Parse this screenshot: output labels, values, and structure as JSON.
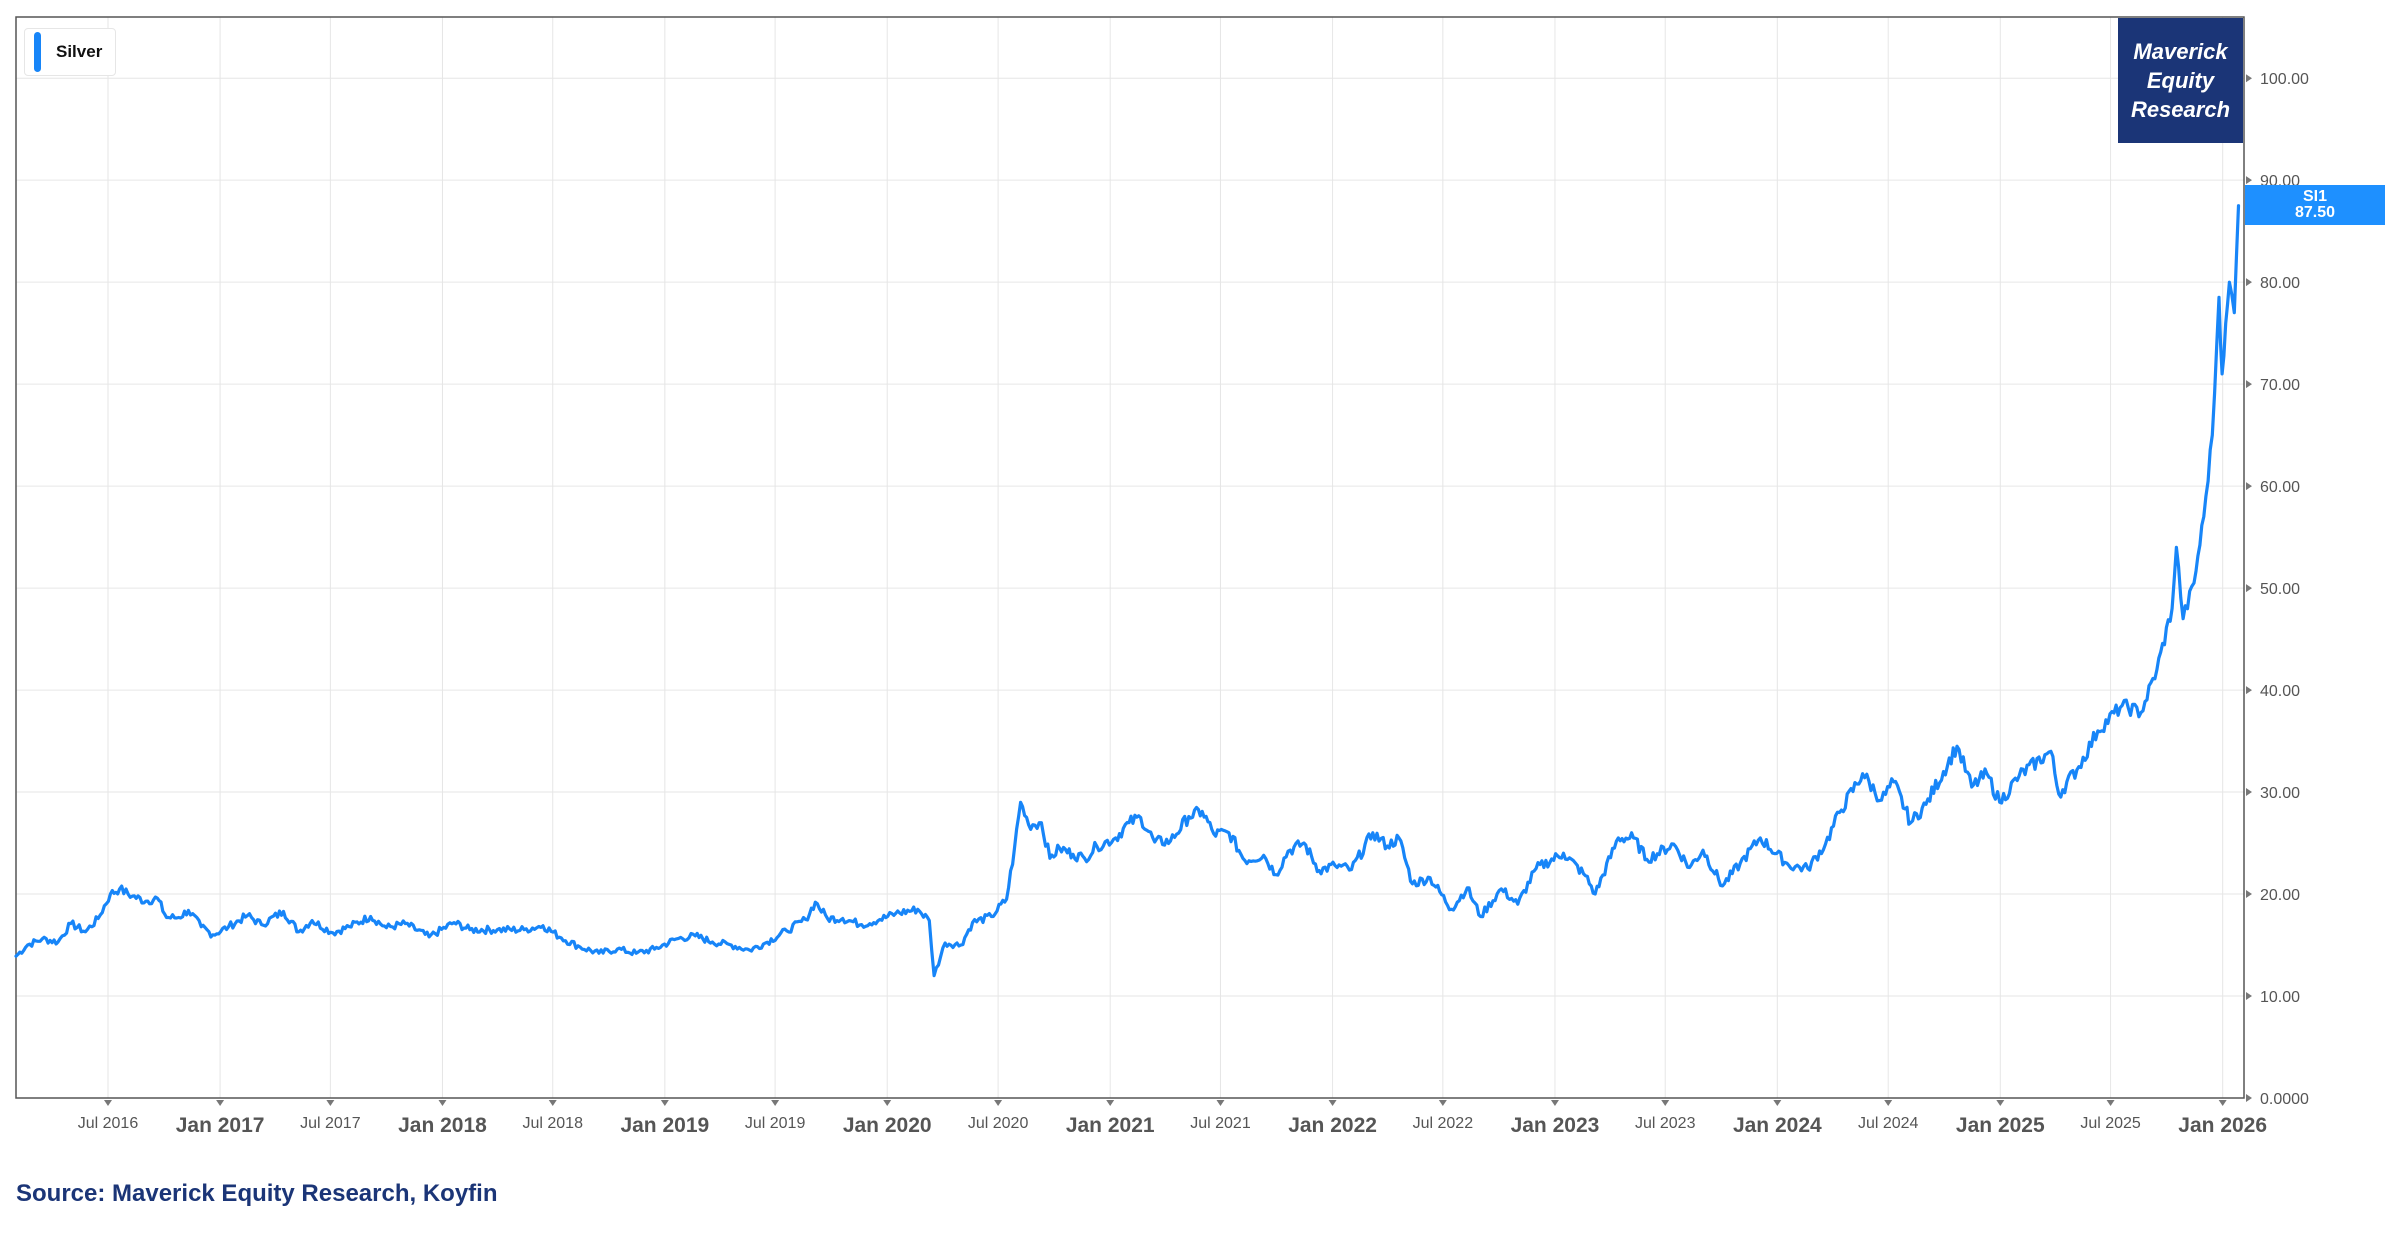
{
  "legend": {
    "label": "Silver"
  },
  "brand": {
    "line1": "Maverick",
    "line2": "Equity",
    "line3": "Research"
  },
  "price_tag": {
    "ticker": "SI1",
    "value": "87.50"
  },
  "source": "Source: Maverick Equity Research, Koyfin",
  "colors": {
    "series": "#1785f8",
    "brand_bg": "#1b3577",
    "tag_bg": "#1e90ff",
    "grid": "#e6e6e6"
  },
  "chart_data": {
    "type": "line",
    "title": "",
    "xlabel": "",
    "ylabel": "",
    "ylim": [
      0,
      106
    ],
    "xlim": [
      "2016-02-01",
      "2026-02-05"
    ],
    "grid": true,
    "legend_position": "top-left",
    "y_ticks": [
      "0.0000",
      "10.00",
      "20.00",
      "30.00",
      "40.00",
      "50.00",
      "60.00",
      "70.00",
      "80.00",
      "90.00",
      "100.00"
    ],
    "x_ticks": [
      {
        "label": "Jul 2016",
        "date": "2016-07-01",
        "major": false
      },
      {
        "label": "Jan 2017",
        "date": "2017-01-01",
        "major": true
      },
      {
        "label": "Jul 2017",
        "date": "2017-07-01",
        "major": false
      },
      {
        "label": "Jan 2018",
        "date": "2018-01-01",
        "major": true
      },
      {
        "label": "Jul 2018",
        "date": "2018-07-01",
        "major": false
      },
      {
        "label": "Jan 2019",
        "date": "2019-01-01",
        "major": true
      },
      {
        "label": "Jul 2019",
        "date": "2019-07-01",
        "major": false
      },
      {
        "label": "Jan 2020",
        "date": "2020-01-01",
        "major": true
      },
      {
        "label": "Jul 2020",
        "date": "2020-07-01",
        "major": false
      },
      {
        "label": "Jan 2021",
        "date": "2021-01-01",
        "major": true
      },
      {
        "label": "Jul 2021",
        "date": "2021-07-01",
        "major": false
      },
      {
        "label": "Jan 2022",
        "date": "2022-01-01",
        "major": true
      },
      {
        "label": "Jul 2022",
        "date": "2022-07-01",
        "major": false
      },
      {
        "label": "Jan 2023",
        "date": "2023-01-01",
        "major": true
      },
      {
        "label": "Jul 2023",
        "date": "2023-07-01",
        "major": false
      },
      {
        "label": "Jan 2024",
        "date": "2024-01-01",
        "major": true
      },
      {
        "label": "Jul 2024",
        "date": "2024-07-01",
        "major": false
      },
      {
        "label": "Jan 2025",
        "date": "2025-01-01",
        "major": true
      },
      {
        "label": "Jul 2025",
        "date": "2025-07-01",
        "major": false
      },
      {
        "label": "Jan 2026",
        "date": "2026-01-01",
        "major": true
      }
    ],
    "series": [
      {
        "name": "Silver",
        "points": [
          [
            "2016-02-01",
            13.9
          ],
          [
            "2016-02-20",
            15.0
          ],
          [
            "2016-03-15",
            15.6
          ],
          [
            "2016-04-10",
            15.3
          ],
          [
            "2016-05-01",
            17.1
          ],
          [
            "2016-05-25",
            16.3
          ],
          [
            "2016-06-15",
            17.6
          ],
          [
            "2016-07-05",
            20.0
          ],
          [
            "2016-07-20",
            20.5
          ],
          [
            "2016-08-10",
            19.8
          ],
          [
            "2016-09-01",
            19.3
          ],
          [
            "2016-09-20",
            19.6
          ],
          [
            "2016-10-05",
            17.7
          ],
          [
            "2016-10-25",
            17.7
          ],
          [
            "2016-11-10",
            18.4
          ],
          [
            "2016-12-01",
            16.8
          ],
          [
            "2016-12-20",
            16.0
          ],
          [
            "2017-01-15",
            16.8
          ],
          [
            "2017-02-15",
            17.9
          ],
          [
            "2017-03-10",
            17.0
          ],
          [
            "2017-04-15",
            18.3
          ],
          [
            "2017-05-10",
            16.3
          ],
          [
            "2017-06-01",
            17.4
          ],
          [
            "2017-07-05",
            16.2
          ],
          [
            "2017-08-01",
            16.8
          ],
          [
            "2017-09-05",
            17.8
          ],
          [
            "2017-10-01",
            16.7
          ],
          [
            "2017-11-01",
            17.1
          ],
          [
            "2017-12-10",
            15.8
          ],
          [
            "2018-01-20",
            17.2
          ],
          [
            "2018-02-15",
            16.5
          ],
          [
            "2018-04-01",
            16.5
          ],
          [
            "2018-05-15",
            16.5
          ],
          [
            "2018-06-15",
            16.9
          ],
          [
            "2018-07-15",
            15.7
          ],
          [
            "2018-08-15",
            14.8
          ],
          [
            "2018-09-15",
            14.2
          ],
          [
            "2018-10-15",
            14.6
          ],
          [
            "2018-11-15",
            14.2
          ],
          [
            "2018-12-15",
            14.6
          ],
          [
            "2019-01-20",
            15.6
          ],
          [
            "2019-02-20",
            15.9
          ],
          [
            "2019-03-20",
            15.3
          ],
          [
            "2019-04-20",
            15.0
          ],
          [
            "2019-05-20",
            14.5
          ],
          [
            "2019-06-15",
            15.2
          ],
          [
            "2019-07-20",
            16.4
          ],
          [
            "2019-08-20",
            17.5
          ],
          [
            "2019-09-05",
            19.2
          ],
          [
            "2019-09-25",
            17.6
          ],
          [
            "2019-10-20",
            17.6
          ],
          [
            "2019-11-20",
            17.0
          ],
          [
            "2019-12-20",
            17.5
          ],
          [
            "2020-01-15",
            18.1
          ],
          [
            "2020-02-20",
            18.5
          ],
          [
            "2020-03-10",
            17.4
          ],
          [
            "2020-03-18",
            12.0
          ],
          [
            "2020-04-05",
            15.2
          ],
          [
            "2020-05-01",
            15.0
          ],
          [
            "2020-05-20",
            17.2
          ],
          [
            "2020-06-20",
            17.8
          ],
          [
            "2020-07-15",
            19.5
          ],
          [
            "2020-07-28",
            24.5
          ],
          [
            "2020-08-07",
            29.0
          ],
          [
            "2020-08-20",
            26.8
          ],
          [
            "2020-09-10",
            27.0
          ],
          [
            "2020-09-24",
            23.5
          ],
          [
            "2020-10-10",
            24.5
          ],
          [
            "2020-11-01",
            23.9
          ],
          [
            "2020-11-20",
            23.5
          ],
          [
            "2020-12-10",
            24.7
          ],
          [
            "2021-01-10",
            25.5
          ],
          [
            "2021-02-01",
            27.0
          ],
          [
            "2021-02-20",
            27.5
          ],
          [
            "2021-03-15",
            25.1
          ],
          [
            "2021-04-10",
            25.2
          ],
          [
            "2021-05-10",
            27.6
          ],
          [
            "2021-06-01",
            28.1
          ],
          [
            "2021-06-20",
            25.9
          ],
          [
            "2021-07-15",
            26.0
          ],
          [
            "2021-08-10",
            23.3
          ],
          [
            "2021-09-10",
            23.8
          ],
          [
            "2021-09-30",
            21.9
          ],
          [
            "2021-10-20",
            24.2
          ],
          [
            "2021-11-15",
            25.0
          ],
          [
            "2021-12-10",
            22.3
          ],
          [
            "2022-01-05",
            22.8
          ],
          [
            "2022-02-01",
            22.4
          ],
          [
            "2022-03-08",
            26.0
          ],
          [
            "2022-04-01",
            24.7
          ],
          [
            "2022-04-20",
            25.5
          ],
          [
            "2022-05-12",
            21.0
          ],
          [
            "2022-06-10",
            21.6
          ],
          [
            "2022-07-15",
            18.5
          ],
          [
            "2022-08-10",
            20.6
          ],
          [
            "2022-09-01",
            17.8
          ],
          [
            "2022-10-05",
            20.5
          ],
          [
            "2022-11-01",
            19.0
          ],
          [
            "2022-12-01",
            22.5
          ],
          [
            "2023-01-15",
            24.0
          ],
          [
            "2023-02-20",
            21.8
          ],
          [
            "2023-03-08",
            20.0
          ],
          [
            "2023-04-15",
            25.5
          ],
          [
            "2023-05-10",
            25.5
          ],
          [
            "2023-06-01",
            23.4
          ],
          [
            "2023-07-15",
            24.9
          ],
          [
            "2023-08-10",
            22.6
          ],
          [
            "2023-09-01",
            24.3
          ],
          [
            "2023-10-03",
            20.8
          ],
          [
            "2023-11-01",
            23.0
          ],
          [
            "2023-12-04",
            25.5
          ],
          [
            "2024-01-20",
            22.8
          ],
          [
            "2024-02-20",
            22.5
          ],
          [
            "2024-03-20",
            24.9
          ],
          [
            "2024-04-12",
            28.0
          ],
          [
            "2024-05-20",
            31.8
          ],
          [
            "2024-06-20",
            29.2
          ],
          [
            "2024-07-10",
            31.0
          ],
          [
            "2024-08-07",
            27.0
          ],
          [
            "2024-09-01",
            28.8
          ],
          [
            "2024-10-22",
            34.5
          ],
          [
            "2024-11-15",
            30.5
          ],
          [
            "2024-12-10",
            31.8
          ],
          [
            "2024-12-31",
            29.0
          ],
          [
            "2025-02-01",
            31.6
          ],
          [
            "2025-03-25",
            34.0
          ],
          [
            "2025-04-07",
            29.8
          ],
          [
            "2025-05-10",
            32.5
          ],
          [
            "2025-06-10",
            36.0
          ],
          [
            "2025-07-20",
            38.5
          ],
          [
            "2025-08-20",
            37.8
          ],
          [
            "2025-09-15",
            42.0
          ],
          [
            "2025-10-10",
            48.0
          ],
          [
            "2025-10-17",
            54.0
          ],
          [
            "2025-10-28",
            47.0
          ],
          [
            "2025-11-15",
            50.5
          ],
          [
            "2025-12-01",
            57.0
          ],
          [
            "2025-12-15",
            65.0
          ],
          [
            "2025-12-26",
            78.5
          ],
          [
            "2025-12-31",
            71.0
          ],
          [
            "2026-01-12",
            80.0
          ],
          [
            "2026-01-20",
            77.0
          ],
          [
            "2026-01-27",
            87.5
          ]
        ]
      }
    ]
  }
}
